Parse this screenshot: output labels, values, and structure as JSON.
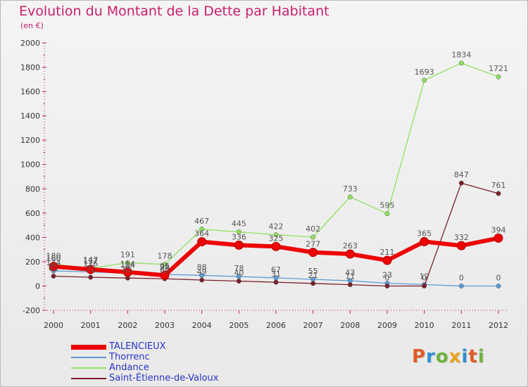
{
  "header": {
    "title": "Evolution du Montant de la Dette par Habitant",
    "subtitle": "(en €)"
  },
  "chart_data": {
    "type": "line",
    "title": "Evolution du Montant de la Dette par Habitant",
    "subtitle": "(en €)",
    "xlabel": "",
    "ylabel": "",
    "ylim": [
      -200,
      2000
    ],
    "yticks": [
      -200,
      0,
      200,
      400,
      600,
      800,
      1000,
      1200,
      1400,
      1600,
      1800,
      2000
    ],
    "x": [
      "2000",
      "2001",
      "2002",
      "2003",
      "2004",
      "2005",
      "2006",
      "2007",
      "2008",
      "2009",
      "2010",
      "2011",
      "2012"
    ],
    "grid": false,
    "legend": "bottom-left",
    "series": [
      {
        "name": "TALENCIEUX",
        "color": "#ee0000",
        "values": [
          160,
          137,
          114,
          88,
          364,
          336,
          325,
          277,
          263,
          211,
          365,
          332,
          394
        ],
        "labels": [
          "160",
          "137",
          "114",
          "88",
          "364",
          "336",
          "325",
          "277",
          "263",
          "211",
          "365",
          "332",
          "394"
        ]
      },
      {
        "name": "Thorrenc",
        "color": "#5b9bd5",
        "values": [
          124,
          116,
          104,
          95,
          88,
          78,
          67,
          55,
          43,
          23,
          12,
          0,
          0
        ],
        "labels": [
          "124",
          "116",
          "104",
          "95",
          "88",
          "78",
          "67",
          "55",
          "43",
          "23",
          "12",
          "0",
          "0"
        ]
      },
      {
        "name": "Andance",
        "color": "#90e060",
        "values": [
          180,
          147,
          191,
          178,
          467,
          445,
          422,
          402,
          733,
          595,
          1693,
          1834,
          1721
        ],
        "labels": [
          "180",
          "147",
          "191",
          "178",
          "467",
          "445",
          "422",
          "402",
          "733",
          "595",
          "1693",
          "1834",
          "1721"
        ]
      },
      {
        "name": "Saint-Étienne-de-Valoux",
        "color": "#7a1f2a",
        "values": [
          81,
          72,
          65,
          60,
          49,
          40,
          31,
          21,
          11,
          0,
          0,
          847,
          761
        ],
        "labels": [
          "81",
          "72",
          "65",
          "60",
          "49",
          "40",
          "31",
          "21",
          "11",
          "0",
          "0",
          "847",
          "761"
        ]
      }
    ]
  },
  "logo": {
    "text": "Proxiti"
  }
}
